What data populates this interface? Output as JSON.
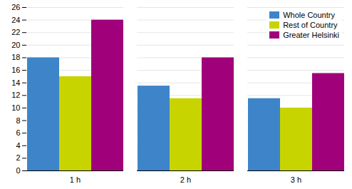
{
  "chart_data": {
    "type": "bar",
    "categories": [
      "1 h",
      "2 h",
      "3 h"
    ],
    "series": [
      {
        "name": "Whole Country",
        "color": "#3d85c8",
        "values": [
          18.0,
          13.5,
          11.5
        ]
      },
      {
        "name": "Rest of Country",
        "color": "#c8d400",
        "values": [
          15.0,
          11.5,
          10.0
        ]
      },
      {
        "name": "Greater Helsinki",
        "color": "#a0007a",
        "values": [
          24.0,
          18.0,
          15.5
        ]
      }
    ],
    "ylim": [
      0,
      26
    ],
    "yticks": [
      0,
      2,
      4,
      6,
      8,
      10,
      12,
      14,
      16,
      18,
      20,
      22,
      24,
      26
    ],
    "grid": true,
    "legend": "upper right"
  }
}
